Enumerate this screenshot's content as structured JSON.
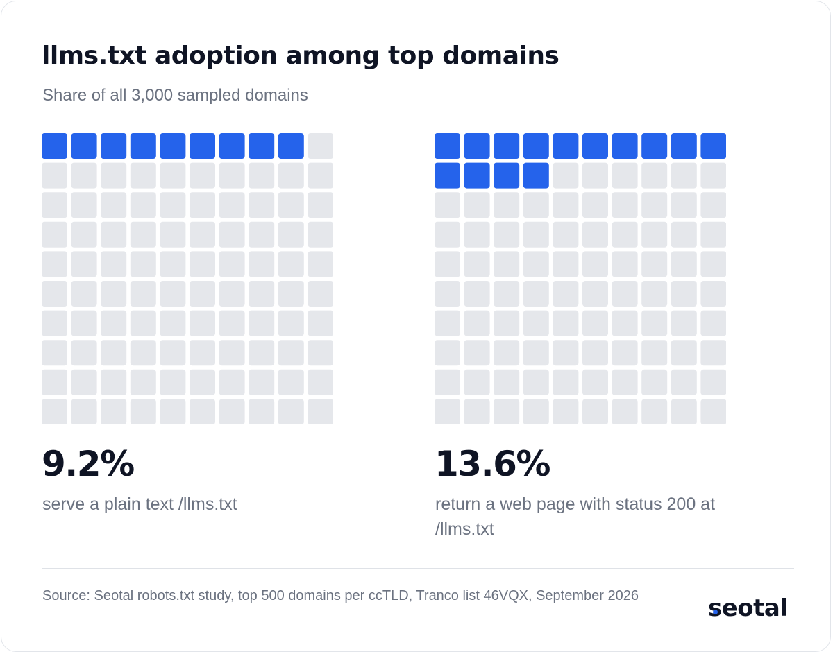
{
  "colors": {
    "filled": "#2563eb",
    "empty": "#e5e7eb",
    "text_dark": "#0f1424",
    "text_muted": "#6b7280"
  },
  "chart_data": {
    "type": "waffle",
    "title": "llms.txt adoption among top domains",
    "subtitle": "Share of all 3,000 sampled domains",
    "grid": {
      "rows": 10,
      "columns": 10
    },
    "panels": [
      {
        "value": 9.2,
        "value_label": "9.2%",
        "description": "serve a plain text /llms.txt",
        "filled_cells": 9
      },
      {
        "value": 13.6,
        "value_label": "13.6%",
        "description": "return a web page with status 200 at /llms.txt",
        "filled_cells": 14
      }
    ],
    "source": "Source: Seotal robots.txt study, top 500 domains per ccTLD, Tranco list 46VQX, September 2026"
  },
  "brand": {
    "logo_text": "seotal"
  }
}
